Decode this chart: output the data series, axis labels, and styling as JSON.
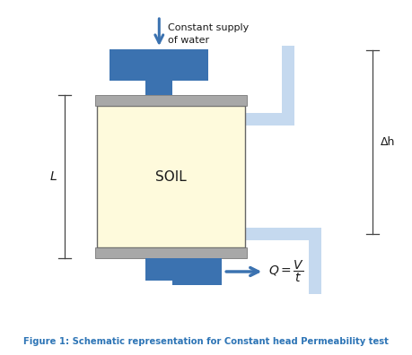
{
  "blue_dark": "#3B72B0",
  "blue_light": "#C5D9EF",
  "gray": "#A8A8A8",
  "soil_fill": "#FEFADC",
  "white": "#FFFFFF",
  "text_dark": "#1A1A1A",
  "caption_color": "#2E75B6",
  "caption_text": "Figure 1: Schematic representation for Constant head Permeability test",
  "soil_label": "SOIL",
  "L_label": "L",
  "dh_label": "Δh",
  "water_label": "Constant supply\nof water"
}
